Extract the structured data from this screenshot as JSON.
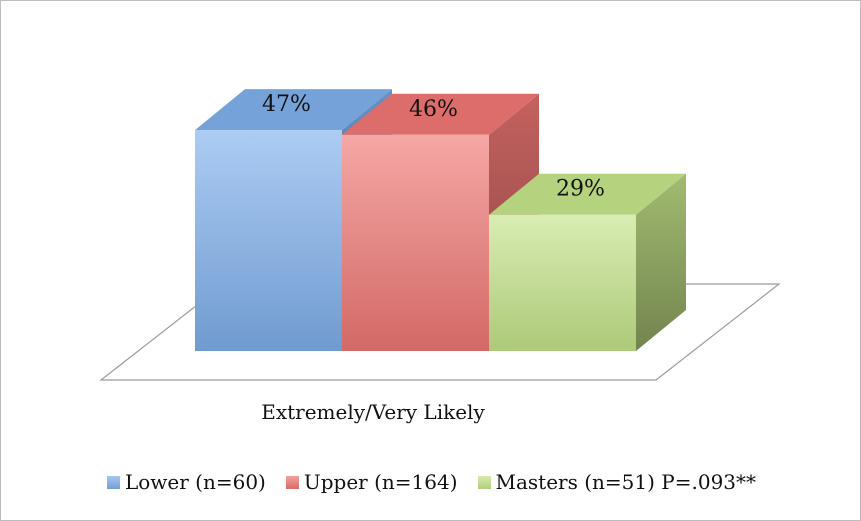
{
  "chart_data": {
    "type": "bar",
    "categories": [
      "Extremely/Very Likely"
    ],
    "series": [
      {
        "name": "Lower (n=60)",
        "values": [
          47
        ],
        "label": "47%",
        "color": "#7fb0ec"
      },
      {
        "name": "Upper (n=164)",
        "values": [
          46
        ],
        "label": "46%",
        "color": "#ef7774"
      },
      {
        "name": "Masters (n=51) P=.093**",
        "values": [
          29
        ],
        "label": "29%",
        "color": "#c5e489"
      }
    ],
    "ylim": [
      0,
      50
    ],
    "three_d": true,
    "grid": false,
    "legend": "bottom"
  }
}
